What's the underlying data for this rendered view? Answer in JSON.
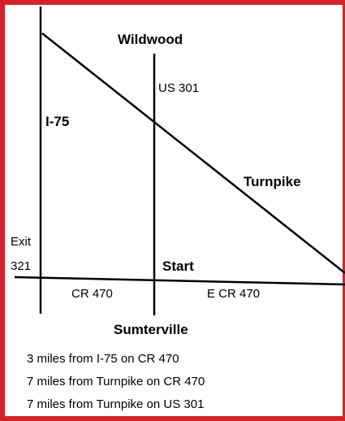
{
  "map": {
    "places": {
      "north": "Wildwood",
      "south": "Sumterville",
      "start": "Start"
    },
    "roads": {
      "interstate": "I-75",
      "us_route": "US 301",
      "turnpike": "Turnpike",
      "county_west": "CR 470",
      "county_east": "E CR 470"
    },
    "exit": {
      "word": "Exit",
      "number": "321"
    },
    "directions": [
      "3 miles from I-75 on CR 470",
      "7 miles from Turnpike on CR 470",
      "7 miles from Turnpike on US 301"
    ]
  }
}
